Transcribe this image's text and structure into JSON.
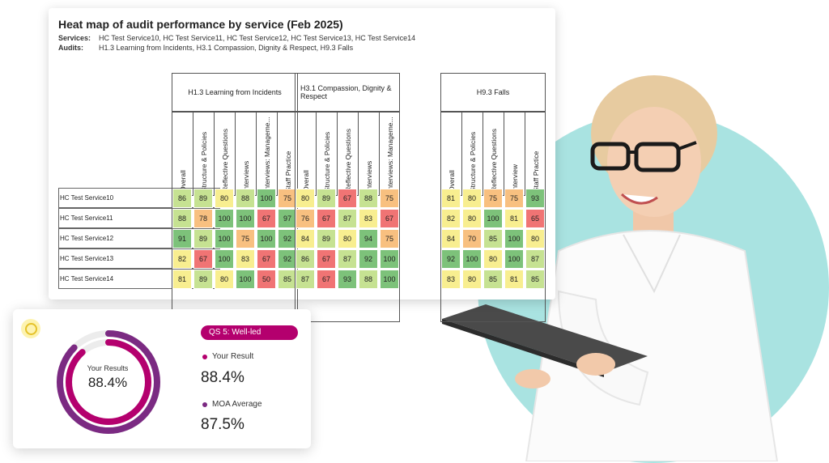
{
  "heatmap": {
    "title": "Heat map of audit performance by service (Feb 2025)",
    "services_label": "Services:",
    "services_value": "HC Test Service10, HC Test Service11, HC Test Service12, HC Test Service13, HC Test Service14",
    "audits_label": "Audits:",
    "audits_value": "H1.3 Learning from Incidents, H3.1 Compassion, Dignity & Respect, H9.3 Falls",
    "rows": [
      "HC Test Service10",
      "HC Test Service11",
      "HC Test Service12",
      "HC Test Service13",
      "HC Test Service14"
    ],
    "groups": [
      {
        "name": "H1.3 Learning from Incidents",
        "columns": [
          "Overall",
          "Structure & Policies",
          "Reflective Questions",
          "Interviews",
          "Interviews: Manageme...",
          "Staff Practice"
        ],
        "values": [
          [
            86,
            89,
            80,
            88,
            100,
            75
          ],
          [
            88,
            78,
            100,
            100,
            67,
            97
          ],
          [
            91,
            89,
            100,
            75,
            100,
            92
          ],
          [
            82,
            67,
            100,
            83,
            67,
            92
          ],
          [
            81,
            89,
            80,
            100,
            50,
            85
          ]
        ]
      },
      {
        "name": "H3.1 Compassion, Dignity & Respect",
        "columns": [
          "Overall",
          "Structure & Policies",
          "Reflective Questions",
          "Interviews",
          "Interviews: Manageme..."
        ],
        "values": [
          [
            80,
            89,
            67,
            88,
            75
          ],
          [
            76,
            67,
            87,
            83,
            67
          ],
          [
            84,
            89,
            80,
            94,
            75
          ],
          [
            86,
            67,
            87,
            92,
            100
          ],
          [
            87,
            67,
            93,
            88,
            100
          ]
        ]
      },
      {
        "name": "H9.3 Falls",
        "columns": [
          "Overall",
          "Structure & Policies",
          "Reflective Questions",
          "Interview",
          "Staff Practice"
        ],
        "values": [
          [
            81,
            80,
            75,
            75,
            93
          ],
          [
            82,
            80,
            100,
            81,
            65
          ],
          [
            84,
            70,
            85,
            100,
            80
          ],
          [
            92,
            100,
            80,
            100,
            87
          ],
          [
            83,
            80,
            85,
            81,
            85
          ]
        ]
      }
    ],
    "colors": {
      "red": "#f07474",
      "orange": "#f8c080",
      "yellow": "#f8ee90",
      "lightgreen": "#c6e292",
      "green": "#7dc27a"
    }
  },
  "score_card": {
    "donut_label": "Your Results",
    "donut_value": "88.4%",
    "donut_fraction": 0.884,
    "moa_fraction": 0.875,
    "pill": "QS 5: Well-led",
    "your_result_label": "Your Result",
    "your_result_value": "88.4%",
    "moa_label": "MOA Average",
    "moa_value": "87.5%",
    "colors": {
      "magenta": "#b4006e",
      "purple": "#7b2a82",
      "track": "#ececec",
      "pill": "#b4006e"
    }
  }
}
